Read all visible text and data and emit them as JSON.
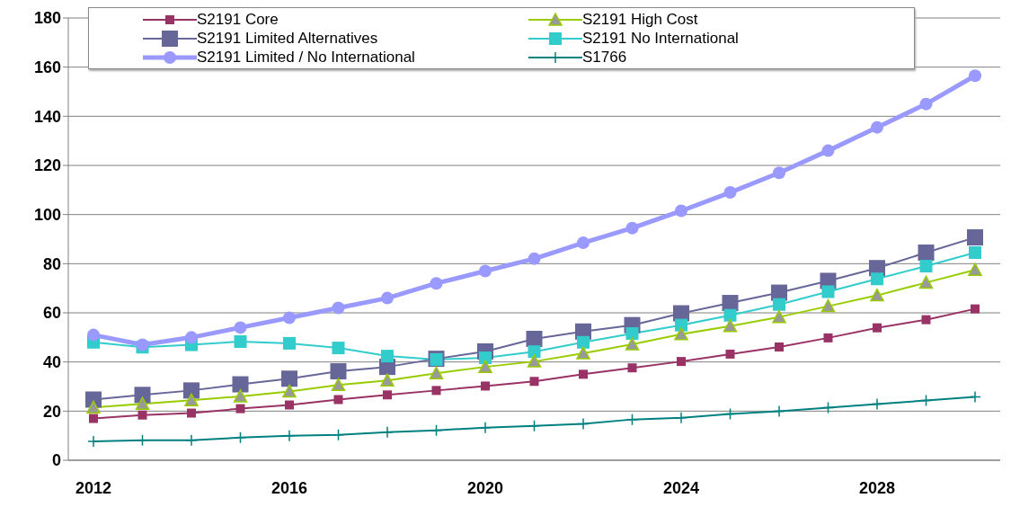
{
  "chart_data": {
    "type": "line",
    "categories": [
      "2012",
      null,
      null,
      null,
      "2016",
      null,
      null,
      null,
      "2020",
      null,
      null,
      null,
      "2024",
      null,
      null,
      null,
      "2028",
      null,
      null
    ],
    "ylim": [
      0,
      180
    ],
    "yticks": [
      0,
      20,
      40,
      60,
      80,
      100,
      120,
      140,
      160,
      180
    ],
    "grid": "y",
    "legend": "top",
    "series": [
      {
        "name": "S2191 Core",
        "color": "#993366",
        "marker": "square",
        "values": [
          17,
          18.4,
          19.2,
          21,
          22.5,
          24.7,
          26.6,
          28.4,
          30.2,
          32.1,
          35,
          37.6,
          40.2,
          43.2,
          46.1,
          49.8,
          53.9,
          57.2,
          61.6
        ]
      },
      {
        "name": "S2191 High Cost",
        "color": "#99cc00",
        "marker": "triangle",
        "values": [
          21.5,
          23,
          24.4,
          26,
          28,
          30.6,
          32.5,
          35.4,
          38,
          40.2,
          43.5,
          47.2,
          51.3,
          54.6,
          58.3,
          62.7,
          67.1,
          72.3,
          77.5
        ]
      },
      {
        "name": "S2191 Limited Alternatives",
        "color": "#666699",
        "marker": "square",
        "values": [
          24.7,
          26.6,
          28.4,
          30.9,
          33.2,
          36.2,
          38,
          41.3,
          44.3,
          49.4,
          52.4,
          55,
          59.8,
          64,
          68.2,
          73,
          78.2,
          84.5,
          90.7
        ]
      },
      {
        "name": "S2191 No International",
        "color": "#33cccc",
        "marker": "square",
        "values": [
          48,
          46,
          47,
          48.3,
          47.6,
          45.7,
          42.4,
          41,
          41.7,
          44.2,
          48,
          51.6,
          55,
          59,
          63.4,
          68.6,
          73.8,
          79,
          84.5
        ]
      },
      {
        "name": "S2191 Limited / No International",
        "color": "#9999ff",
        "marker": "circle",
        "values": [
          51,
          47,
          50,
          54,
          58,
          62,
          66,
          72,
          77,
          82,
          88.5,
          94.5,
          101.5,
          109,
          117,
          126,
          135.5,
          145,
          156.5
        ]
      },
      {
        "name": "S1766",
        "color": "#008080",
        "marker": "cross",
        "values": [
          7.7,
          8.1,
          8.1,
          9.2,
          10,
          10.3,
          11.4,
          12.2,
          13.3,
          14,
          14.8,
          16.6,
          17.3,
          18.8,
          19.9,
          21.4,
          22.9,
          24.3,
          25.8
        ]
      }
    ]
  }
}
